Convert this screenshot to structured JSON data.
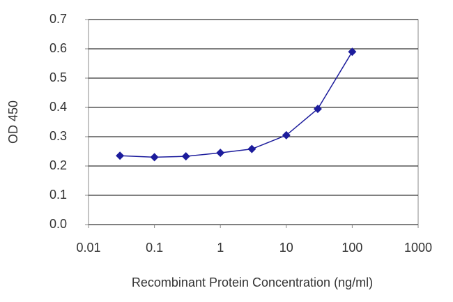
{
  "chart_data": {
    "type": "line",
    "xlabel": "Recombinant Protein Concentration (ng/ml)",
    "ylabel": "OD 450",
    "x": [
      0.03,
      0.1,
      0.3,
      1,
      3,
      10,
      30,
      100
    ],
    "series": [
      {
        "color": "#1c1c9c",
        "values": [
          0.235,
          0.23,
          0.233,
          0.245,
          0.258,
          0.305,
          0.395,
          0.59
        ]
      }
    ],
    "xscale": "log",
    "xlim": [
      0.01,
      1000
    ],
    "xticks": [
      0.01,
      0.1,
      1,
      10,
      100,
      1000
    ],
    "ylim": [
      0,
      0.7
    ],
    "yticks": [
      {
        "value": 0,
        "label": "0.0"
      },
      0.1,
      0.2,
      0.3,
      0.4,
      0.5,
      0.6,
      0.7
    ],
    "grid": true
  }
}
